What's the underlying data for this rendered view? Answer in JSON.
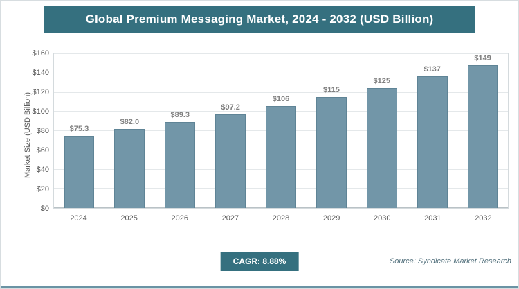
{
  "page": {
    "title": "Global Premium Messaging Market, 2024 - 2032 (USD Billion)",
    "cagr_label": "CAGR: 8.88%",
    "source": "Source: Syndicate Market Research"
  },
  "chart_data": {
    "type": "bar",
    "title": "Global Premium Messaging Market, 2024 - 2032 (USD Billion)",
    "categories": [
      "2024",
      "2025",
      "2026",
      "2027",
      "2028",
      "2029",
      "2030",
      "2031",
      "2032"
    ],
    "values": [
      75.3,
      82.0,
      89.3,
      97.2,
      106,
      115,
      125,
      137,
      149
    ],
    "value_labels": [
      "$75.3",
      "$82.0",
      "$89.3",
      "$97.2",
      "$106",
      "$115",
      "$125",
      "$137",
      "$149"
    ],
    "xlabel": "",
    "ylabel": "Market Size (USD Billion)",
    "ylim": [
      0,
      160
    ],
    "y_ticks": [
      0,
      20,
      40,
      60,
      80,
      100,
      120,
      140,
      160
    ],
    "y_tick_labels": [
      "$0",
      "$20",
      "$40",
      "$60",
      "$80",
      "$100",
      "$120",
      "$140",
      "$160"
    ],
    "grid": "horizontal",
    "legend": "none",
    "bar_color": "#7296a8",
    "title_bar_color": "#35707f",
    "cagr": "8.88%"
  }
}
